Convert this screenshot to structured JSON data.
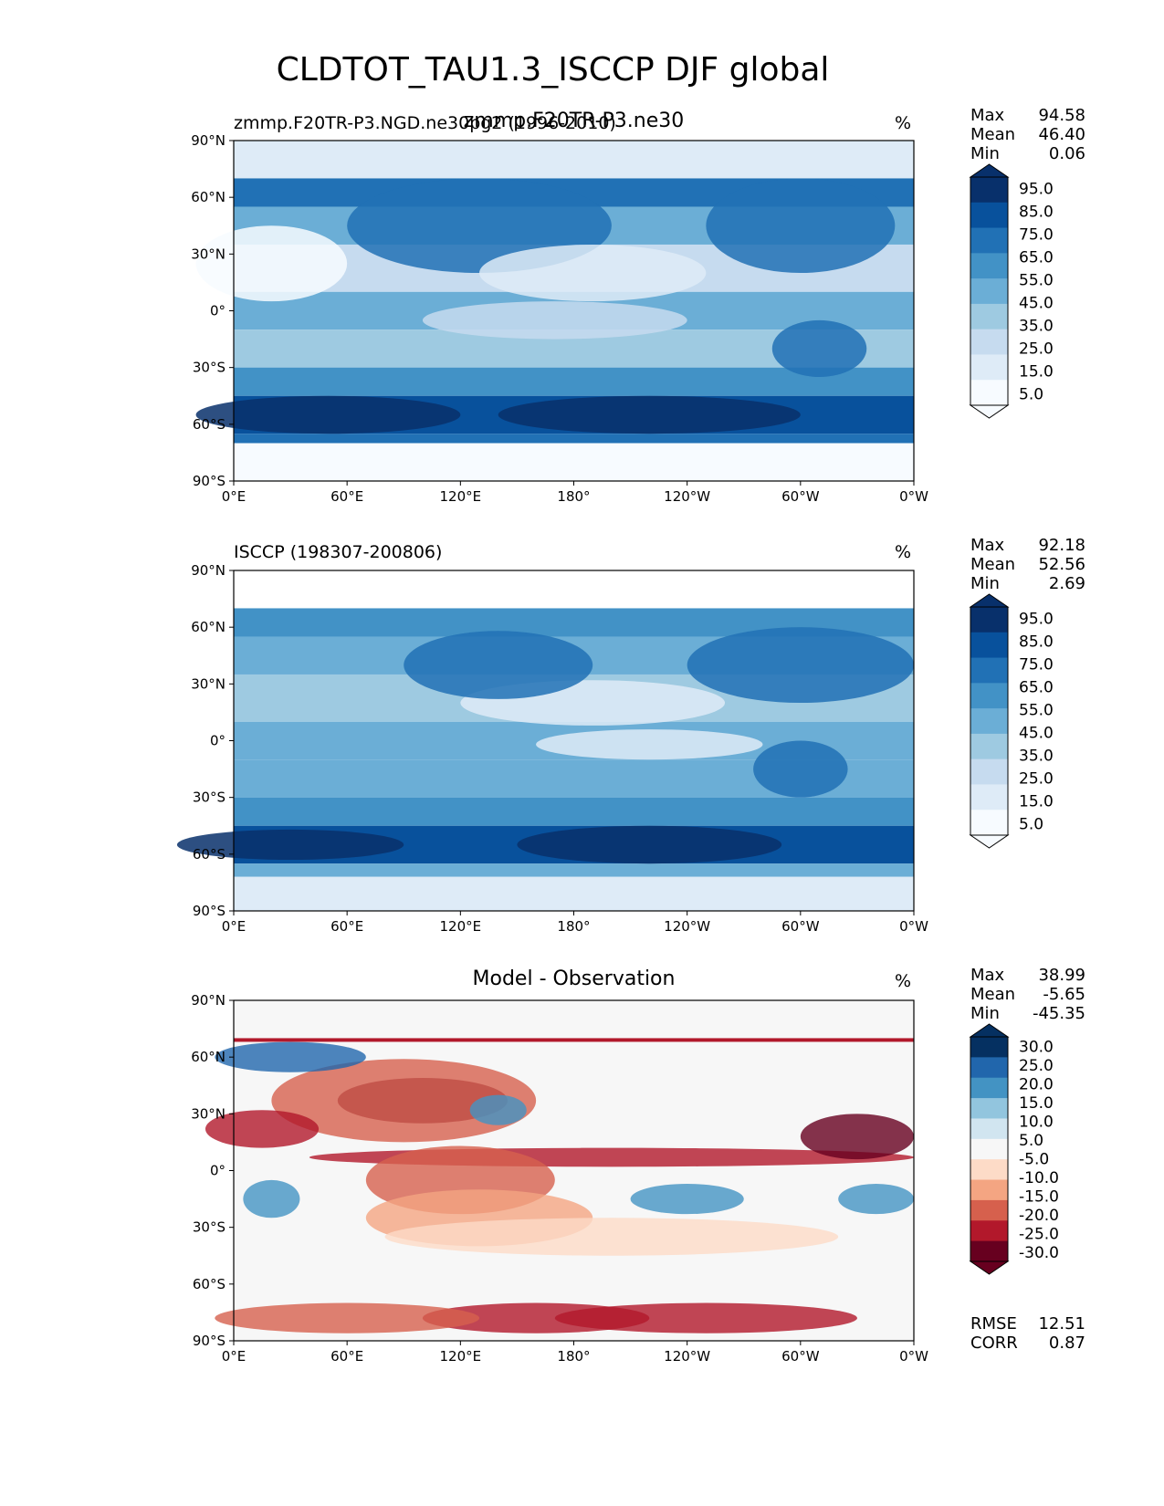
{
  "figure": {
    "title": "CLDTOT_TAU1.3_ISCCP DJF global"
  },
  "panels": [
    {
      "left_title": "zmmp.F20TR-P3.NGD.ne30pg2 (1996-2010)",
      "center_title": "zmmp.F20TR-P3.ne30",
      "units": "%",
      "stats": [
        {
          "label": "Max",
          "value": "94.58"
        },
        {
          "label": "Mean",
          "value": "46.40"
        },
        {
          "label": "Min",
          "value": "0.06"
        }
      ],
      "colorbar_ticks": [
        "95.0",
        "85.0",
        "75.0",
        "65.0",
        "55.0",
        "45.0",
        "35.0",
        "25.0",
        "15.0",
        "5.0"
      ]
    },
    {
      "left_title": "ISCCP (198307-200806)",
      "center_title": "",
      "units": "%",
      "stats": [
        {
          "label": "Max",
          "value": "92.18"
        },
        {
          "label": "Mean",
          "value": "52.56"
        },
        {
          "label": "Min",
          "value": "2.69"
        }
      ],
      "colorbar_ticks": [
        "95.0",
        "85.0",
        "75.0",
        "65.0",
        "55.0",
        "45.0",
        "35.0",
        "25.0",
        "15.0",
        "5.0"
      ]
    },
    {
      "left_title": "",
      "center_title": "Model - Observation",
      "units": "%",
      "stats": [
        {
          "label": "Max",
          "value": "38.99"
        },
        {
          "label": "Mean",
          "value": "-5.65"
        },
        {
          "label": "Min",
          "value": "-45.35"
        }
      ],
      "colorbar_ticks": [
        "30.0",
        "25.0",
        "20.0",
        "15.0",
        "10.0",
        "5.0",
        "-5.0",
        "-10.0",
        "-15.0",
        "-20.0",
        "-25.0",
        "-30.0"
      ],
      "extra_stats": [
        {
          "label": "RMSE",
          "value": "12.51"
        },
        {
          "label": "CORR",
          "value": "0.87"
        }
      ]
    }
  ],
  "chart_data": [
    {
      "type": "heatmap",
      "title": "zmmp.F20TR-P3.ne30",
      "variable": "CLDTOT_TAU1.3_ISCCP",
      "season": "DJF",
      "units": "%",
      "xlabel": "",
      "ylabel": "",
      "x_ticks": [
        "0°E",
        "60°E",
        "120°E",
        "180°",
        "120°W",
        "60°W",
        "0°W"
      ],
      "y_ticks": [
        "90°N",
        "60°N",
        "30°N",
        "0°",
        "30°S",
        "60°S",
        "90°S"
      ],
      "x_range": [
        0,
        360
      ],
      "y_range": [
        -90,
        90
      ],
      "levels": [
        5,
        15,
        25,
        35,
        45,
        55,
        65,
        75,
        85,
        95
      ],
      "max": 94.58,
      "mean": 46.4,
      "min": 0.06
    },
    {
      "type": "heatmap",
      "title": "ISCCP (198307-200806)",
      "units": "%",
      "x_ticks": [
        "0°E",
        "60°E",
        "120°E",
        "180°",
        "120°W",
        "60°W",
        "0°W"
      ],
      "y_ticks": [
        "90°N",
        "60°N",
        "30°N",
        "0°",
        "30°S",
        "60°S",
        "90°S"
      ],
      "x_range": [
        0,
        360
      ],
      "y_range": [
        -90,
        90
      ],
      "levels": [
        5,
        15,
        25,
        35,
        45,
        55,
        65,
        75,
        85,
        95
      ],
      "max": 92.18,
      "mean": 52.56,
      "min": 2.69
    },
    {
      "type": "heatmap",
      "title": "Model - Observation",
      "units": "%",
      "x_ticks": [
        "0°E",
        "60°E",
        "120°E",
        "180°",
        "120°W",
        "60°W",
        "0°W"
      ],
      "y_ticks": [
        "90°N",
        "60°N",
        "30°N",
        "0°",
        "30°S",
        "60°S",
        "90°S"
      ],
      "x_range": [
        0,
        360
      ],
      "y_range": [
        -90,
        90
      ],
      "levels": [
        -30,
        -25,
        -20,
        -15,
        -10,
        -5,
        5,
        10,
        15,
        20,
        25,
        30
      ],
      "max": 38.99,
      "mean": -5.65,
      "min": -45.35,
      "rmse": 12.51,
      "corr": 0.87
    }
  ]
}
